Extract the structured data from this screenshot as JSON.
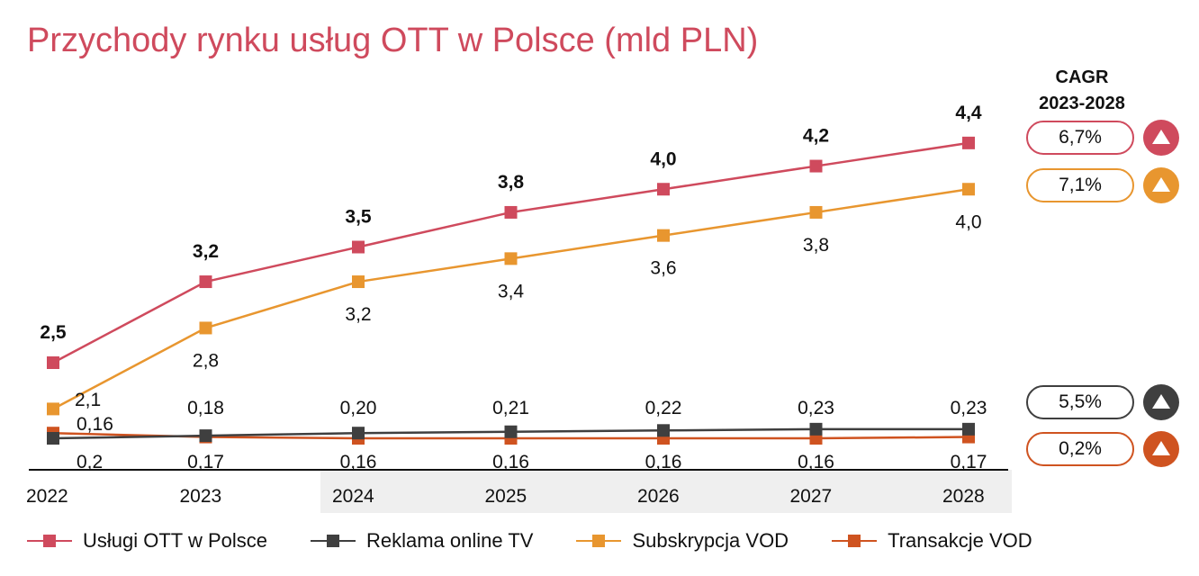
{
  "title": "Przychody rynku usług OTT w Polsce (mld PLN)",
  "cagr": {
    "header_line1": "CAGR",
    "header_line2": "2023-2028",
    "items": [
      {
        "value": "6,7%",
        "color": "#cf4a5d",
        "trend": "up"
      },
      {
        "value": "7,1%",
        "color": "#e8962f",
        "trend": "up"
      },
      {
        "value": "5,5%",
        "color": "#3f3f3f",
        "trend": "up"
      },
      {
        "value": "0,2%",
        "color": "#cf5320",
        "trend": "up"
      }
    ]
  },
  "chart_data": {
    "type": "line",
    "title": "Przychody rynku usług OTT w Polsce (mld PLN)",
    "categories": [
      "2022",
      "2023",
      "2024",
      "2025",
      "2026",
      "2027",
      "2028"
    ],
    "forecast_shading_from": "2024",
    "series": [
      {
        "name": "Usługi OTT w Polsce",
        "color": "#cf4a5d",
        "values": [
          2.5,
          3.2,
          3.5,
          3.8,
          4.0,
          4.2,
          4.4
        ],
        "labels": [
          "2,5",
          "3,2",
          "3,5",
          "3,8",
          "4,0",
          "4,2",
          "4,4"
        ],
        "label_position": "above",
        "label_bold": true
      },
      {
        "name": "Subskrypcja VOD",
        "color": "#e8962f",
        "values": [
          2.1,
          2.8,
          3.2,
          3.4,
          3.6,
          3.8,
          4.0
        ],
        "labels": [
          "2,1",
          "2,8",
          "3,2",
          "3,4",
          "3,6",
          "3,8",
          "4,0"
        ],
        "label_position": "below",
        "label_bold": false
      },
      {
        "name": "Reklama online TV",
        "color": "#3f3f3f",
        "values": [
          0.16,
          0.18,
          0.2,
          0.21,
          0.22,
          0.23,
          0.23
        ],
        "labels": [
          "0,16",
          "0,18",
          "0,20",
          "0,21",
          "0,22",
          "0,23",
          "0,23"
        ],
        "label_position": "above",
        "label_bold": false
      },
      {
        "name": "Transakcje VOD",
        "color": "#cf5320",
        "values": [
          0.2,
          0.17,
          0.16,
          0.16,
          0.16,
          0.16,
          0.17
        ],
        "labels": [
          "0,2",
          "0,17",
          "0,16",
          "0,16",
          "0,16",
          "0,16",
          "0,17"
        ],
        "label_position": "below",
        "label_bold": false
      }
    ],
    "legend_order": [
      "Usługi OTT w Polsce",
      "Reklama online TV",
      "Subskrypcja VOD",
      "Transakcje VOD"
    ],
    "legend_position": "bottom",
    "grid": false
  }
}
